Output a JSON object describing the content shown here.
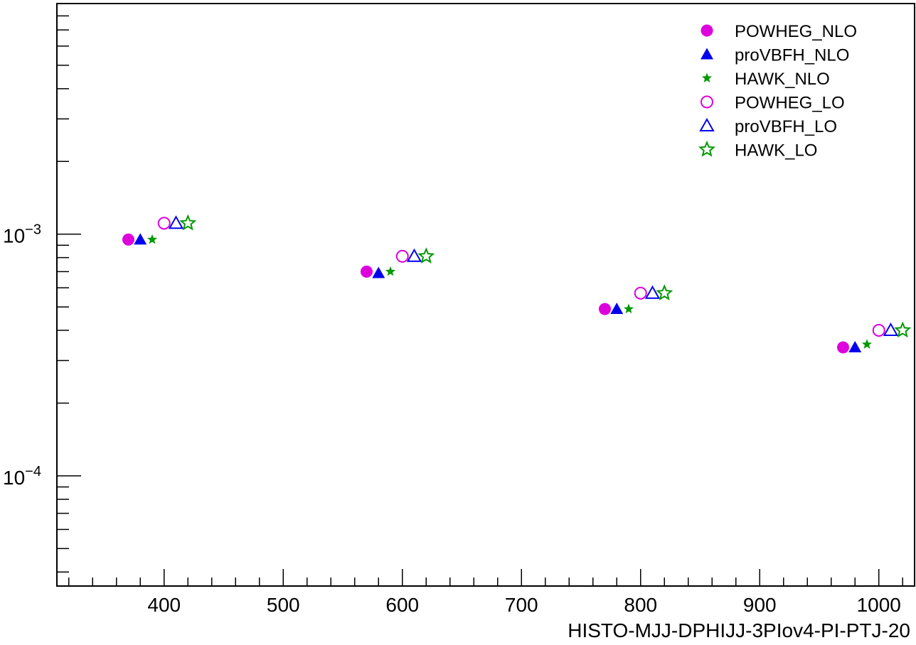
{
  "chart_data": {
    "type": "scatter",
    "title": "",
    "xlabel": "HISTO-MJJ-DPHIJJ-3PIov4-PI-PTJ-20",
    "ylabel": "",
    "xlim": [
      310,
      1030
    ],
    "ylim": [
      3.5e-05,
      0.009
    ],
    "y_scale": "log",
    "grid": false,
    "legend_position": "top-right",
    "x_ticks": [
      400,
      500,
      600,
      700,
      800,
      900,
      1000
    ],
    "x_tick_labels": [
      "400",
      "500",
      "600",
      "700",
      "800",
      "900",
      "1000"
    ],
    "y_ticks": [
      0.0001,
      0.001
    ],
    "y_tick_labels": [
      {
        "base": "10",
        "exp": "−4"
      },
      {
        "base": "10",
        "exp": "−3"
      }
    ],
    "series": [
      {
        "name": "POWHEG_NLO",
        "marker": "circle-filled",
        "color": "#dd00dd",
        "x": [
          370,
          570,
          770,
          970
        ],
        "y": [
          0.00095,
          0.0007,
          0.00049,
          0.00034
        ]
      },
      {
        "name": "proVBFH_NLO",
        "marker": "triangle-filled",
        "color": "#0000ee",
        "x": [
          380,
          580,
          780,
          980
        ],
        "y": [
          0.00095,
          0.00069,
          0.00049,
          0.00034
        ]
      },
      {
        "name": "HAWK_NLO",
        "marker": "star-filled",
        "color": "#009900",
        "x": [
          390,
          590,
          790,
          990
        ],
        "y": [
          0.00095,
          0.0007,
          0.00049,
          0.00035
        ]
      },
      {
        "name": "POWHEG_LO",
        "marker": "circle-open",
        "color": "#dd00dd",
        "x": [
          400,
          600,
          800,
          1000
        ],
        "y": [
          0.00111,
          0.00081,
          0.00057,
          0.0004
        ]
      },
      {
        "name": "proVBFH_LO",
        "marker": "triangle-open",
        "color": "#0000ee",
        "x": [
          410,
          610,
          810,
          1010
        ],
        "y": [
          0.00111,
          0.00081,
          0.00057,
          0.0004
        ]
      },
      {
        "name": "HAWK_LO",
        "marker": "star-open",
        "color": "#009900",
        "x": [
          420,
          620,
          820,
          1020
        ],
        "y": [
          0.00111,
          0.00081,
          0.00057,
          0.0004
        ]
      }
    ]
  }
}
